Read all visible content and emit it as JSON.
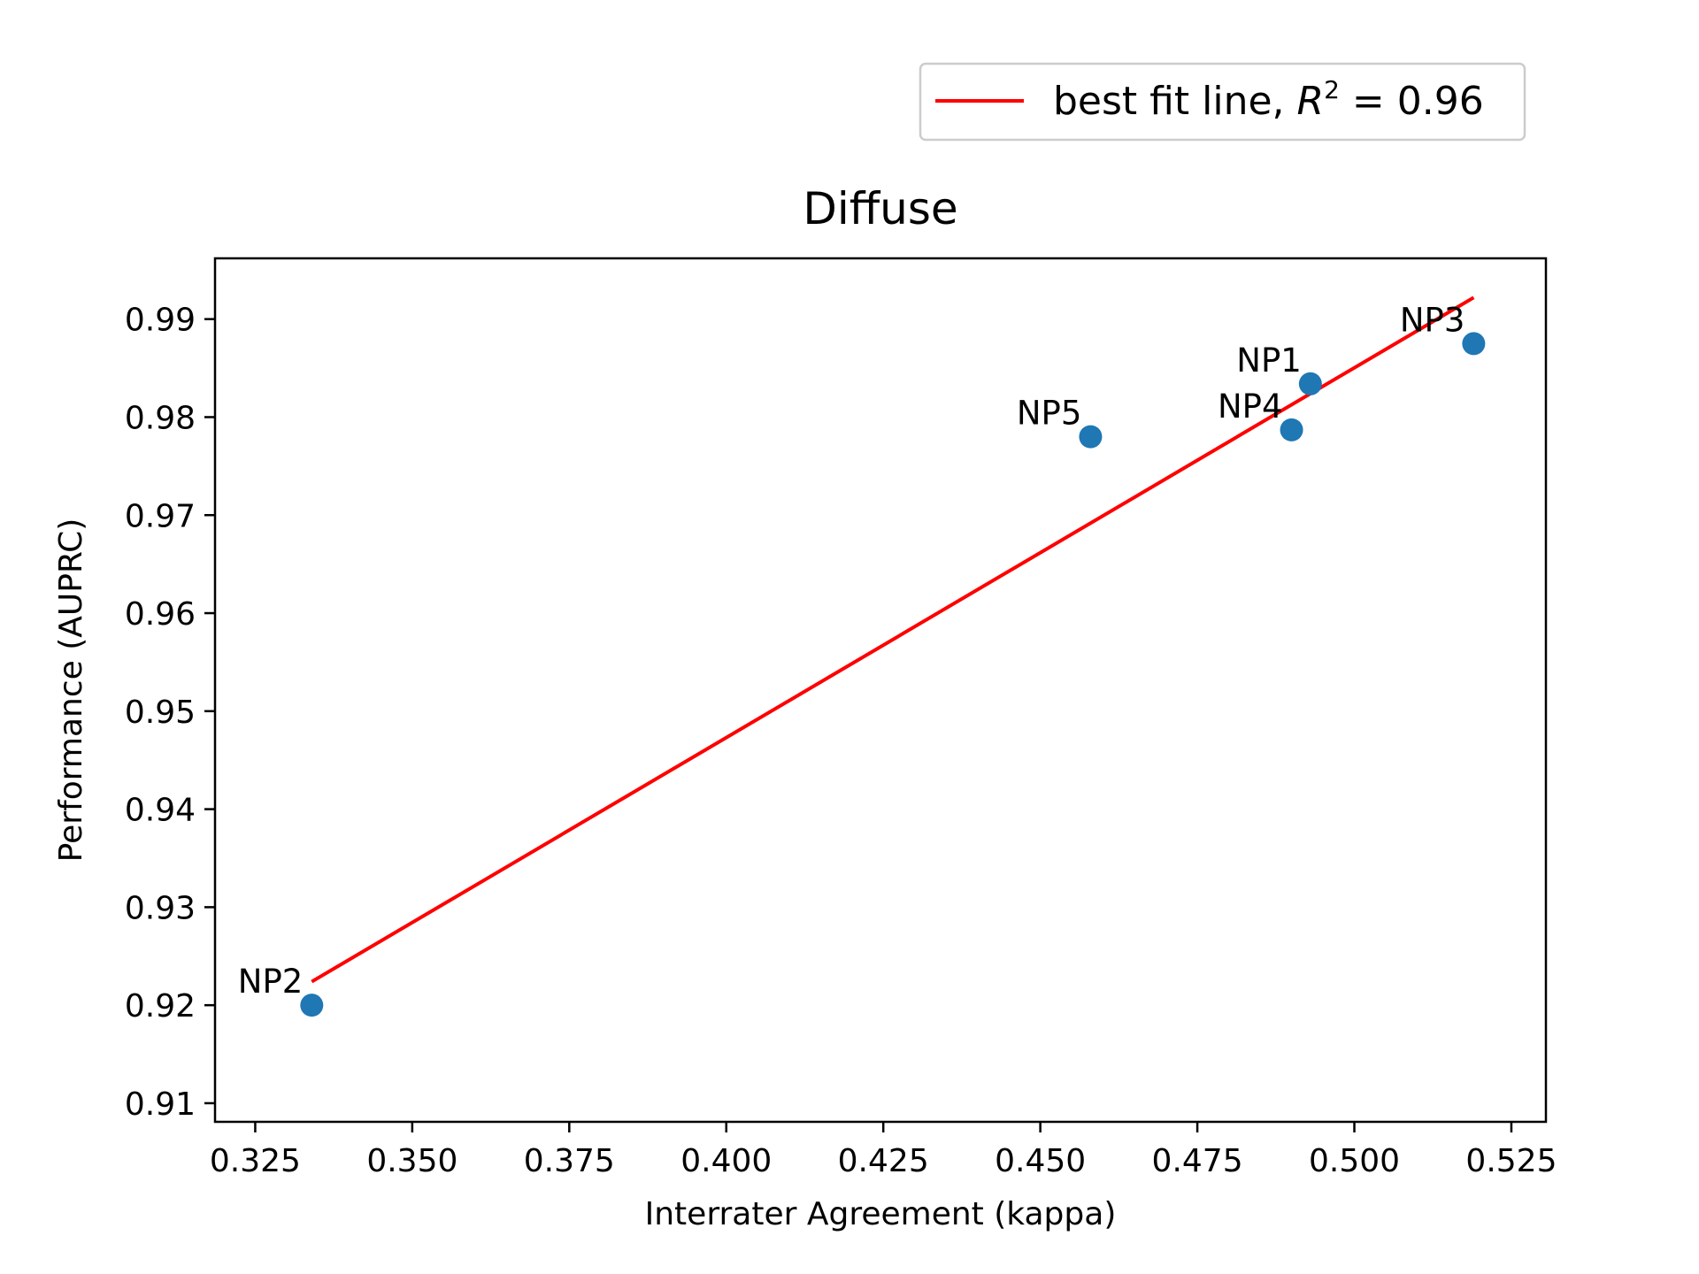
{
  "chart_data": {
    "type": "scatter",
    "title": "Diffuse",
    "xlabel": "Interrater Agreement (kappa)",
    "ylabel": "Performance (AUPRC)",
    "xlim": [
      0.3186,
      0.5305
    ],
    "ylim": [
      0.9081,
      0.9962
    ],
    "x_ticks": [
      0.325,
      0.35,
      0.375,
      0.4,
      0.425,
      0.45,
      0.475,
      0.5,
      0.525
    ],
    "x_tick_labels": [
      "0.325",
      "0.350",
      "0.375",
      "0.400",
      "0.425",
      "0.450",
      "0.475",
      "0.500",
      "0.525"
    ],
    "y_ticks": [
      0.91,
      0.92,
      0.93,
      0.94,
      0.95,
      0.96,
      0.97,
      0.98,
      0.99
    ],
    "y_tick_labels": [
      "0.91",
      "0.92",
      "0.93",
      "0.94",
      "0.95",
      "0.96",
      "0.97",
      "0.98",
      "0.99"
    ],
    "points": [
      {
        "label": "NP1",
        "x": 0.493,
        "y": 0.9834
      },
      {
        "label": "NP2",
        "x": 0.334,
        "y": 0.92
      },
      {
        "label": "NP3",
        "x": 0.519,
        "y": 0.9875
      },
      {
        "label": "NP4",
        "x": 0.49,
        "y": 0.9787
      },
      {
        "label": "NP5",
        "x": 0.458,
        "y": 0.978
      }
    ],
    "fit_line": {
      "legend_text": "best fit line, ",
      "legend_r": "R",
      "legend_sup": "2",
      "legend_value": " = 0.96",
      "x": [
        0.334,
        0.519
      ],
      "y": [
        0.9224,
        0.9922
      ]
    },
    "point_color": "#1f77b4",
    "line_color": "#ff0000",
    "legend_position": "upper-right, above plot",
    "grid": false
  }
}
